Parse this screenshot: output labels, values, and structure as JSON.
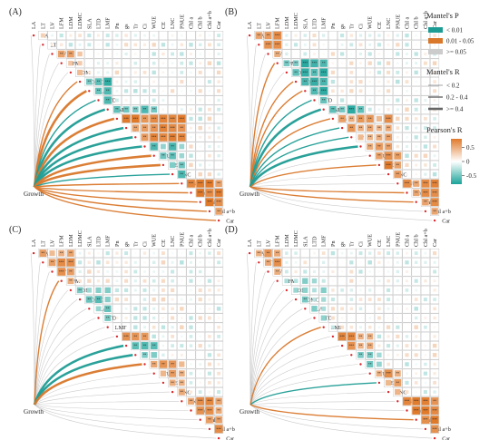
{
  "chart_data": {
    "type": "heatmap",
    "variables": [
      "LA",
      "LT",
      "LV",
      "LFM",
      "LDM",
      "LDMC",
      "SLA",
      "LTD",
      "LMF",
      "Pn",
      "gs",
      "Tr",
      "Ci",
      "WUE",
      "CE",
      "LNC",
      "PNUE",
      "Chl a",
      "Chl b",
      "Chl a+b",
      "Car"
    ],
    "group_label": "Growth",
    "color_scale": {
      "title": "Pearson's R",
      "min": -0.8,
      "max": 0.8,
      "ticks": [
        0.5,
        0,
        -0.5
      ],
      "tick_labels": [
        "0.5",
        "0",
        "-0.5"
      ],
      "low_color": "#1aa39a",
      "mid_color": "#ffffff",
      "high_color": "#e07a2b"
    },
    "mantel_p_legend": {
      "title": "Mantel's P",
      "items": [
        {
          "label": "< 0.01",
          "color": "#1d9c94"
        },
        {
          "label": "0.01 - 0.05",
          "color": "#d9772a"
        },
        {
          "label": ">= 0.05",
          "color": "#cccccc"
        }
      ]
    },
    "mantel_r_legend": {
      "title": "Mantel's R",
      "items": [
        {
          "label": "< 0.2",
          "width": 0.6
        },
        {
          "label": "0.2 - 0.4",
          "width": 1.4
        },
        {
          "label": ">= 0.4",
          "width": 2.6
        }
      ]
    },
    "panels": [
      {
        "label": "(A)",
        "seed": 11,
        "blocks": [
          [
            0,
            1,
            0.35
          ],
          [
            2,
            5,
            0.45
          ],
          [
            5,
            8,
            -0.6
          ],
          [
            8,
            13,
            -0.55
          ],
          [
            9,
            16,
            0.7
          ],
          [
            13,
            16,
            0.75
          ],
          [
            16,
            20,
            0.7
          ],
          [
            12,
            16,
            -0.5
          ]
        ],
        "links": [
          [
            0,
            "grey",
            0
          ],
          [
            1,
            "grey",
            0
          ],
          [
            2,
            "grey",
            0
          ],
          [
            3,
            "grey",
            0
          ],
          [
            4,
            "grey",
            0
          ],
          [
            5,
            "orange",
            1
          ],
          [
            6,
            "orange",
            2
          ],
          [
            7,
            "teal",
            1
          ],
          [
            8,
            "teal",
            2
          ],
          [
            9,
            "orange",
            2
          ],
          [
            10,
            "teal",
            2
          ],
          [
            11,
            "teal",
            2
          ],
          [
            12,
            "teal",
            2
          ],
          [
            13,
            "orange",
            2
          ],
          [
            14,
            "orange",
            2
          ],
          [
            15,
            "teal",
            1
          ],
          [
            16,
            "orange",
            1
          ],
          [
            17,
            "orange",
            1
          ],
          [
            18,
            "orange",
            1
          ],
          [
            19,
            "orange",
            1
          ],
          [
            20,
            "orange",
            1
          ]
        ]
      },
      {
        "label": "(B)",
        "seed": 23,
        "blocks": [
          [
            0,
            3,
            0.6
          ],
          [
            3,
            8,
            -0.6
          ],
          [
            8,
            12,
            -0.6
          ],
          [
            9,
            15,
            0.55
          ],
          [
            13,
            16,
            0.7
          ],
          [
            16,
            20,
            0.65
          ]
        ],
        "links": [
          [
            0,
            "grey",
            0
          ],
          [
            1,
            "grey",
            0
          ],
          [
            2,
            "grey",
            0
          ],
          [
            3,
            "orange",
            1
          ],
          [
            4,
            "grey",
            0
          ],
          [
            5,
            "orange",
            1
          ],
          [
            6,
            "orange",
            1
          ],
          [
            7,
            "teal",
            1
          ],
          [
            8,
            "teal",
            2
          ],
          [
            9,
            "orange",
            1
          ],
          [
            10,
            "teal",
            1
          ],
          [
            11,
            "teal",
            1
          ],
          [
            12,
            "teal",
            2
          ],
          [
            13,
            "grey",
            0
          ],
          [
            14,
            "orange",
            1
          ],
          [
            15,
            "grey",
            0
          ],
          [
            16,
            "grey",
            0
          ],
          [
            17,
            "orange",
            1
          ],
          [
            18,
            "orange",
            1
          ],
          [
            19,
            "grey",
            0
          ],
          [
            20,
            "grey",
            0
          ]
        ]
      },
      {
        "label": "(C)",
        "seed": 37,
        "blocks": [
          [
            0,
            4,
            0.55
          ],
          [
            4,
            8,
            -0.45
          ],
          [
            9,
            12,
            0.6
          ],
          [
            10,
            13,
            -0.5
          ],
          [
            12,
            16,
            0.5
          ],
          [
            16,
            20,
            0.65
          ]
        ],
        "links": [
          [
            0,
            "grey",
            0
          ],
          [
            1,
            "grey",
            0
          ],
          [
            2,
            "grey",
            0
          ],
          [
            3,
            "orange",
            1
          ],
          [
            4,
            "grey",
            0
          ],
          [
            5,
            "grey",
            0
          ],
          [
            6,
            "grey",
            0
          ],
          [
            7,
            "grey",
            0
          ],
          [
            8,
            "grey",
            0
          ],
          [
            9,
            "grey",
            0
          ],
          [
            10,
            "teal",
            2
          ],
          [
            11,
            "teal",
            2
          ],
          [
            12,
            "orange",
            2
          ],
          [
            13,
            "grey",
            0
          ],
          [
            14,
            "grey",
            0
          ],
          [
            15,
            "grey",
            0
          ],
          [
            16,
            "grey",
            0
          ],
          [
            17,
            "grey",
            0
          ],
          [
            18,
            "grey",
            0
          ],
          [
            19,
            "grey",
            0
          ],
          [
            20,
            "grey",
            0
          ]
        ]
      },
      {
        "label": "(D)",
        "seed": 53,
        "blocks": [
          [
            0,
            3,
            0.6
          ],
          [
            3,
            8,
            -0.35
          ],
          [
            9,
            13,
            0.6
          ],
          [
            11,
            14,
            -0.45
          ],
          [
            13,
            16,
            0.55
          ],
          [
            16,
            20,
            0.7
          ]
        ],
        "links": [
          [
            0,
            "grey",
            0
          ],
          [
            1,
            "grey",
            0
          ],
          [
            2,
            "grey",
            0
          ],
          [
            3,
            "grey",
            0
          ],
          [
            4,
            "grey",
            0
          ],
          [
            5,
            "grey",
            0
          ],
          [
            6,
            "grey",
            0
          ],
          [
            7,
            "grey",
            0
          ],
          [
            8,
            "orange",
            1
          ],
          [
            9,
            "grey",
            0
          ],
          [
            10,
            "grey",
            0
          ],
          [
            11,
            "grey",
            0
          ],
          [
            12,
            "grey",
            0
          ],
          [
            13,
            "grey",
            0
          ],
          [
            14,
            "teal",
            1
          ],
          [
            15,
            "grey",
            0
          ],
          [
            16,
            "grey",
            0
          ],
          [
            17,
            "grey",
            0
          ],
          [
            18,
            "orange",
            1
          ],
          [
            19,
            "grey",
            0
          ],
          [
            20,
            "grey",
            0
          ]
        ]
      }
    ]
  }
}
